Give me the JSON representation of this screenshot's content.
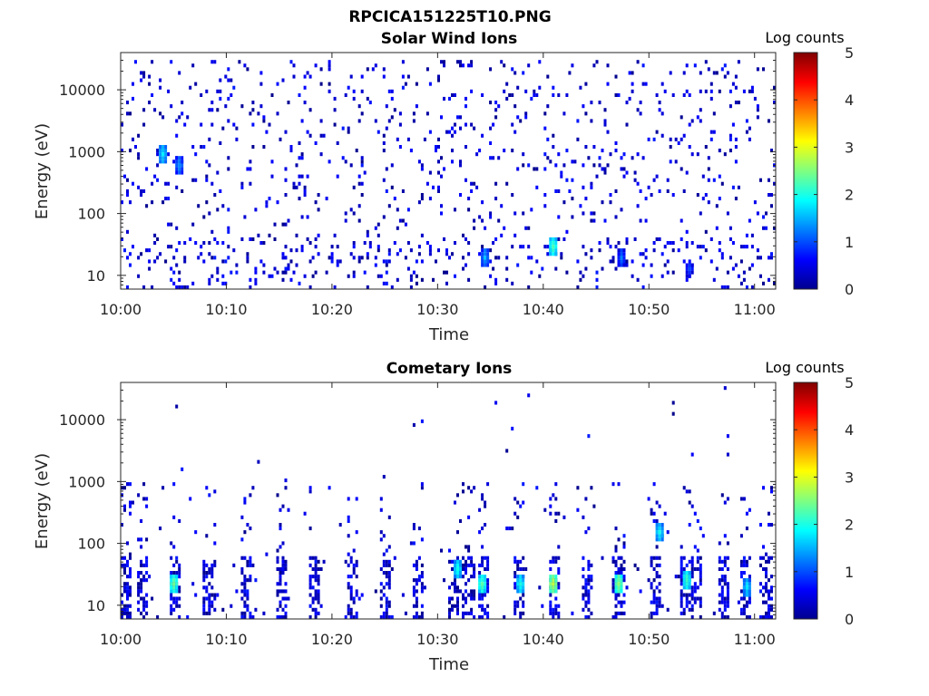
{
  "figure": {
    "title": "RPCICA151225T10.PNG"
  },
  "chart_data": [
    {
      "type": "heatmap",
      "title": "Solar Wind Ions",
      "xlabel": "Time",
      "ylabel": "Energy (eV)",
      "x_ticks": [
        "10:00",
        "10:10",
        "10:20",
        "10:30",
        "10:40",
        "10:50",
        "11:00"
      ],
      "x_range_minutes": [
        0,
        62
      ],
      "y_scale": "log",
      "y_ticks": [
        "10",
        "100",
        "1000",
        "10000"
      ],
      "y_range": [
        6,
        40000
      ],
      "colorbar": {
        "label": "Log counts",
        "ticks": [
          "0",
          "1",
          "2",
          "3",
          "4",
          "5"
        ],
        "range": [
          0,
          5
        ],
        "colormap": "jet"
      },
      "grid": false,
      "seed": 17,
      "density": "sparse-wide",
      "hotspots": [
        {
          "t": 3.8,
          "e": 800,
          "v": 1.8
        },
        {
          "t": 5.5,
          "e": 600,
          "v": 1.4
        },
        {
          "t": 34.3,
          "e": 18,
          "v": 1.5
        },
        {
          "t": 40.8,
          "e": 28,
          "v": 2.2
        },
        {
          "t": 47.3,
          "e": 18,
          "v": 1.2
        },
        {
          "t": 53.8,
          "e": 12,
          "v": 1.0
        }
      ]
    },
    {
      "type": "heatmap",
      "title": "Cometary Ions",
      "xlabel": "Time",
      "ylabel": "Energy (eV)",
      "x_ticks": [
        "10:00",
        "10:10",
        "10:20",
        "10:30",
        "10:40",
        "10:50",
        "11:00"
      ],
      "x_range_minutes": [
        0,
        62
      ],
      "y_scale": "log",
      "y_ticks": [
        "10",
        "100",
        "1000",
        "10000"
      ],
      "y_range": [
        6,
        40000
      ],
      "colorbar": {
        "label": "Log counts",
        "ticks": [
          "0",
          "1",
          "2",
          "3",
          "4",
          "5"
        ],
        "range": [
          0,
          5
        ],
        "colormap": "jet"
      },
      "grid": false,
      "seed": 91,
      "density": "low-energy-bursts",
      "burst_times_minutes": [
        0.3,
        2.0,
        5.1,
        8.3,
        11.8,
        15.2,
        18.3,
        21.9,
        25.0,
        28.1,
        31.4,
        32.8,
        34.2,
        37.6,
        40.9,
        44.1,
        47.0,
        50.6,
        53.4,
        54.3,
        56.9,
        59.1,
        61.0
      ],
      "hotspots": [
        {
          "t": 5.0,
          "e": 22,
          "v": 2.4
        },
        {
          "t": 31.8,
          "e": 35,
          "v": 2.0
        },
        {
          "t": 34.2,
          "e": 20,
          "v": 2.3
        },
        {
          "t": 37.6,
          "e": 22,
          "v": 2.0
        },
        {
          "t": 40.9,
          "e": 22,
          "v": 2.8
        },
        {
          "t": 47.0,
          "e": 22,
          "v": 2.6
        },
        {
          "t": 51.0,
          "e": 150,
          "v": 1.9
        },
        {
          "t": 53.6,
          "e": 25,
          "v": 2.2
        },
        {
          "t": 59.1,
          "e": 18,
          "v": 1.8
        }
      ]
    }
  ]
}
